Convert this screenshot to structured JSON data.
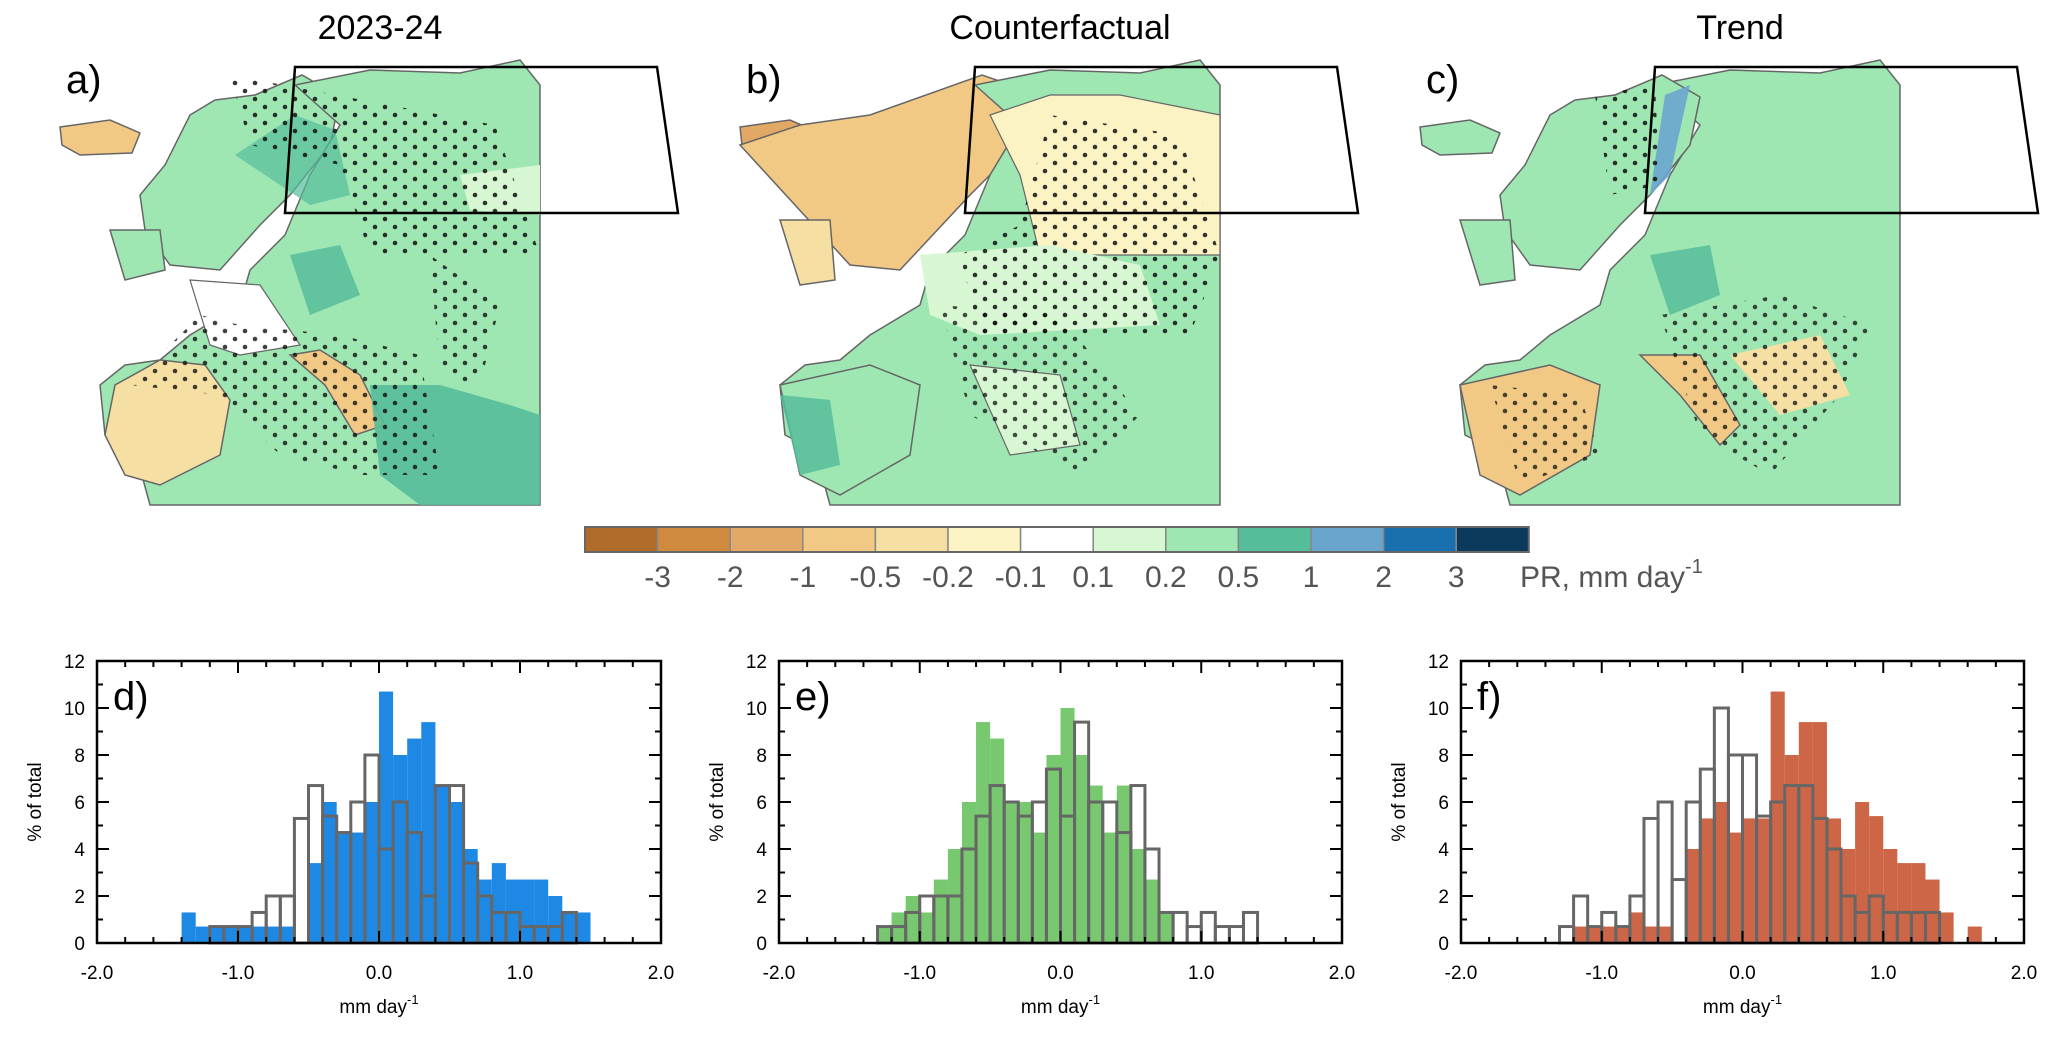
{
  "chart_data": {
    "maps": [
      {
        "panel_label": "a)",
        "title": "2023-24"
      },
      {
        "panel_label": "b)",
        "title": "Counterfactual"
      },
      {
        "panel_label": "c)",
        "title": "Trend"
      }
    ],
    "colorbar": {
      "tick_labels": [
        "-3",
        "-2",
        "-1",
        "-0.5",
        "-0.2",
        "-0.1",
        "0.1",
        "0.2",
        "0.5",
        "1",
        "2",
        "3"
      ],
      "colors": [
        "#b06a2a",
        "#cf8a3e",
        "#e2a865",
        "#f1c985",
        "#f5dfa3",
        "#fcf3c4",
        "#ffffff",
        "#d6f7d2",
        "#9ee6b2",
        "#56bd9b",
        "#6aa5cd",
        "#1a6faf",
        "#0b3a5d"
      ],
      "unit_label": "PR, mm day",
      "unit_exponent": "-1"
    },
    "histograms": [
      {
        "panel_label": "d)",
        "type": "bar",
        "fill_color": "#1e88e5",
        "xlabel": "mm day",
        "xlabel_exponent": "-1",
        "ylabel": "% of total",
        "xlim": [
          -2.0,
          2.0
        ],
        "ylim": [
          0,
          12
        ],
        "xticks": [
          "-2.0",
          "-1.0",
          "0.0",
          "1.0",
          "2.0"
        ],
        "yticks": [
          "0",
          "2",
          "4",
          "6",
          "8",
          "10",
          "12"
        ],
        "bin_width": 0.1,
        "bin_starts": [
          -1.4,
          -1.3,
          -1.2,
          -1.1,
          -1.0,
          -0.9,
          -0.8,
          -0.7,
          -0.6,
          -0.5,
          -0.4,
          -0.3,
          -0.2,
          -0.1,
          0.0,
          0.1,
          0.2,
          0.3,
          0.4,
          0.5,
          0.6,
          0.7,
          0.8,
          0.9,
          1.0,
          1.1,
          1.2,
          1.3,
          1.4
        ],
        "filled": [
          1.3,
          0.7,
          0.7,
          0.7,
          0.7,
          0.7,
          0.7,
          0.7,
          0,
          3.4,
          6.0,
          4.7,
          4.7,
          6.0,
          10.7,
          8.0,
          8.7,
          9.4,
          6.7,
          6.0,
          4.0,
          2.7,
          3.4,
          2.7,
          2.7,
          2.7,
          2.0,
          1.3,
          1.3
        ],
        "outline": [
          0,
          0,
          0.7,
          0.7,
          0.7,
          1.3,
          2.0,
          2.0,
          5.3,
          6.7,
          5.4,
          4.7,
          6.0,
          8.0,
          4.0,
          6.0,
          4.7,
          2.0,
          6.7,
          6.7,
          3.4,
          2.0,
          1.3,
          1.3,
          0.7,
          0.7,
          0.7,
          1.3,
          0
        ]
      },
      {
        "panel_label": "e)",
        "type": "bar",
        "fill_color": "#77c86e",
        "xlabel": "mm day",
        "xlabel_exponent": "-1",
        "ylabel": "% of total",
        "xlim": [
          -2.0,
          2.0
        ],
        "ylim": [
          0,
          12
        ],
        "xticks": [
          "-2.0",
          "-1.0",
          "0.0",
          "1.0",
          "2.0"
        ],
        "yticks": [
          "0",
          "2",
          "4",
          "6",
          "8",
          "10",
          "12"
        ],
        "bin_width": 0.1,
        "bin_starts": [
          -1.3,
          -1.2,
          -1.1,
          -1.0,
          -0.9,
          -0.8,
          -0.7,
          -0.6,
          -0.5,
          -0.4,
          -0.3,
          -0.2,
          -0.1,
          0.0,
          0.1,
          0.2,
          0.3,
          0.4,
          0.5,
          0.6,
          0.7,
          0.8,
          0.9,
          1.0,
          1.1,
          1.2,
          1.3
        ],
        "filled": [
          0.7,
          1.3,
          2.0,
          1.3,
          2.7,
          4.0,
          6.0,
          9.4,
          8.7,
          6.0,
          6.0,
          4.7,
          8.0,
          10.0,
          8.0,
          6.7,
          4.7,
          6.7,
          4.0,
          2.7,
          1.3,
          0,
          0,
          0,
          0,
          0,
          0
        ],
        "outline": [
          0.7,
          0.7,
          1.3,
          2.0,
          2.0,
          2.0,
          4.0,
          5.4,
          6.7,
          6.0,
          5.4,
          6.0,
          7.4,
          5.4,
          9.4,
          6.0,
          6.0,
          4.7,
          6.7,
          4.0,
          1.3,
          1.3,
          0.7,
          1.3,
          0.7,
          0.7,
          1.3
        ]
      },
      {
        "panel_label": "f)",
        "type": "bar",
        "fill_color": "#cc6646",
        "xlabel": "mm day",
        "xlabel_exponent": "-1",
        "ylabel": "% of total",
        "xlim": [
          -2.0,
          2.0
        ],
        "ylim": [
          0,
          12
        ],
        "xticks": [
          "-2.0",
          "-1.0",
          "0.0",
          "1.0",
          "2.0"
        ],
        "yticks": [
          "0",
          "2",
          "4",
          "6",
          "8",
          "10",
          "12"
        ],
        "bin_width": 0.1,
        "bin_starts": [
          -1.3,
          -1.2,
          -1.1,
          -1.0,
          -0.9,
          -0.8,
          -0.7,
          -0.6,
          -0.5,
          -0.4,
          -0.3,
          -0.2,
          -0.1,
          0.0,
          0.1,
          0.2,
          0.3,
          0.4,
          0.5,
          0.6,
          0.7,
          0.8,
          0.9,
          1.0,
          1.1,
          1.2,
          1.3,
          1.4,
          1.5,
          1.6
        ],
        "filled": [
          0,
          0.7,
          0.7,
          0.7,
          0.7,
          1.3,
          0.7,
          0.7,
          0,
          4.0,
          5.3,
          6.0,
          4.7,
          5.3,
          5.3,
          10.7,
          8.0,
          9.4,
          9.4,
          5.3,
          4.0,
          6.0,
          5.4,
          4.0,
          3.4,
          3.4,
          2.7,
          1.3,
          0,
          0.7
        ],
        "outline": [
          0.7,
          2.0,
          0.7,
          1.3,
          0.7,
          2.0,
          5.3,
          6.0,
          2.7,
          6.0,
          7.4,
          10.0,
          8.0,
          8.0,
          5.4,
          6.0,
          6.7,
          6.7,
          5.3,
          4.0,
          2.0,
          1.3,
          2.0,
          1.3,
          1.3,
          1.3,
          1.3,
          0,
          0,
          0
        ]
      }
    ]
  }
}
